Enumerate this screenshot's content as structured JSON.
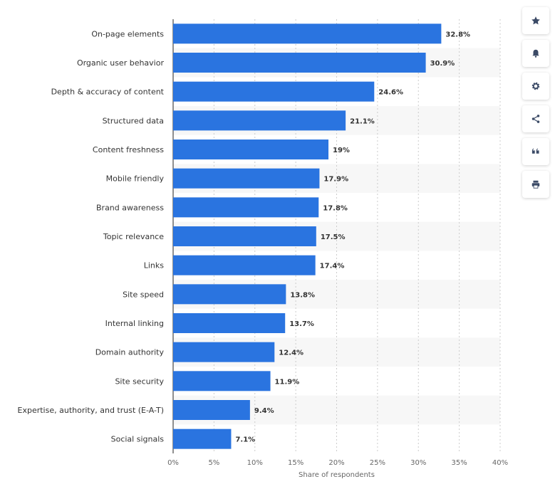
{
  "chart_data": {
    "type": "bar",
    "orientation": "horizontal",
    "categories": [
      "On-page elements",
      "Organic user behavior",
      "Depth & accuracy of content",
      "Structured data",
      "Content freshness",
      "Mobile friendly",
      "Brand awareness",
      "Topic relevance",
      "Links",
      "Site speed",
      "Internal linking",
      "Domain authority",
      "Site security",
      "Expertise, authority, and trust (E-A-T)",
      "Social signals"
    ],
    "values": [
      32.8,
      30.9,
      24.6,
      21.1,
      19,
      17.9,
      17.8,
      17.5,
      17.4,
      13.8,
      13.7,
      12.4,
      11.9,
      9.4,
      7.1
    ],
    "value_labels": [
      "32.8%",
      "30.9%",
      "24.6%",
      "21.1%",
      "19%",
      "17.9%",
      "17.8%",
      "17.5%",
      "17.4%",
      "13.8%",
      "13.7%",
      "12.4%",
      "11.9%",
      "9.4%",
      "7.1%"
    ],
    "xlabel": "Share of respondents",
    "ylabel": "",
    "xlim": [
      0,
      40
    ],
    "ticks": [
      0,
      5,
      10,
      15,
      20,
      25,
      30,
      35,
      40
    ],
    "tick_labels": [
      "0%",
      "5%",
      "10%",
      "15%",
      "20%",
      "25%",
      "30%",
      "35%",
      "40%"
    ],
    "bar_color": "#2a74e0",
    "grid": "vertical dashed",
    "legend": "none"
  },
  "toolbar": {
    "buttons": [
      {
        "name": "favorite-button",
        "icon": "star-icon"
      },
      {
        "name": "notification-button",
        "icon": "bell-icon"
      },
      {
        "name": "settings-button",
        "icon": "gear-icon"
      },
      {
        "name": "share-button",
        "icon": "share-icon"
      },
      {
        "name": "cite-button",
        "icon": "quote-icon"
      },
      {
        "name": "print-button",
        "icon": "print-icon"
      }
    ],
    "icon_color": "#3b4a66"
  }
}
